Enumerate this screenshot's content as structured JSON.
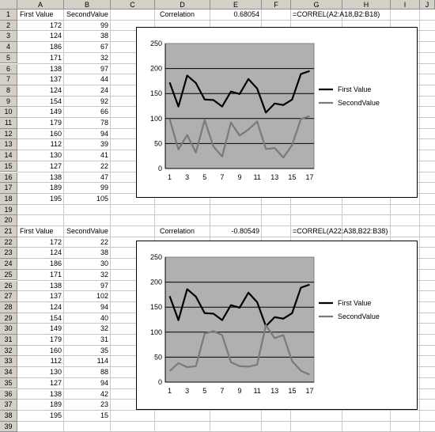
{
  "columns": [
    "A",
    "B",
    "C",
    "D",
    "E",
    "F",
    "G",
    "H",
    "I",
    "J"
  ],
  "rows": [
    "1",
    "2",
    "3",
    "4",
    "5",
    "6",
    "7",
    "8",
    "9",
    "10",
    "11",
    "12",
    "13",
    "14",
    "15",
    "16",
    "17",
    "18",
    "19",
    "20",
    "21",
    "22",
    "23",
    "24",
    "25",
    "26",
    "27",
    "28",
    "29",
    "30",
    "31",
    "32",
    "33",
    "34",
    "35",
    "36",
    "37",
    "38",
    "39"
  ],
  "block1": {
    "header_a": "First Value",
    "header_b": "SecondValue",
    "label": "Correlation",
    "value": "0.68054",
    "formula": "=CORREL(A2:A18,B2:B18)",
    "col_a": [
      "172",
      "124",
      "186",
      "171",
      "138",
      "137",
      "124",
      "154",
      "149",
      "179",
      "160",
      "112",
      "130",
      "127",
      "138",
      "189",
      "195"
    ],
    "col_b": [
      "99",
      "38",
      "67",
      "32",
      "97",
      "44",
      "24",
      "92",
      "66",
      "78",
      "94",
      "39",
      "41",
      "22",
      "47",
      "99",
      "105"
    ]
  },
  "block2": {
    "header_a": "First Value",
    "header_b": "SecondValue",
    "label": "Correlation",
    "value": "-0.80549",
    "formula": "=CORREL(A22:A38,B22:B38)",
    "col_a": [
      "172",
      "124",
      "186",
      "171",
      "138",
      "137",
      "124",
      "154",
      "149",
      "179",
      "160",
      "112",
      "130",
      "127",
      "138",
      "189",
      "195"
    ],
    "col_b": [
      "22",
      "38",
      "30",
      "32",
      "97",
      "102",
      "94",
      "40",
      "32",
      "31",
      "35",
      "114",
      "88",
      "94",
      "42",
      "23",
      "15"
    ]
  },
  "chart_data": [
    {
      "type": "line",
      "x": [
        1,
        2,
        3,
        4,
        5,
        6,
        7,
        8,
        9,
        10,
        11,
        12,
        13,
        14,
        15,
        16,
        17
      ],
      "x_tick_labels": [
        "1",
        "3",
        "5",
        "7",
        "9",
        "11",
        "13",
        "15",
        "17"
      ],
      "y_tick_labels": [
        "0",
        "50",
        "100",
        "150",
        "200",
        "250"
      ],
      "ylim": [
        0,
        250
      ],
      "grid": true,
      "legend_position": "right",
      "series": [
        {
          "name": "First Value",
          "color": "#000000",
          "values": [
            172,
            124,
            186,
            171,
            138,
            137,
            124,
            154,
            149,
            179,
            160,
            112,
            130,
            127,
            138,
            189,
            195
          ]
        },
        {
          "name": "SecondValue",
          "color": "#7a7a7a",
          "values": [
            99,
            38,
            67,
            32,
            97,
            44,
            24,
            92,
            66,
            78,
            94,
            39,
            41,
            22,
            47,
            99,
            105
          ]
        }
      ]
    },
    {
      "type": "line",
      "x": [
        1,
        2,
        3,
        4,
        5,
        6,
        7,
        8,
        9,
        10,
        11,
        12,
        13,
        14,
        15,
        16,
        17
      ],
      "x_tick_labels": [
        "1",
        "3",
        "5",
        "7",
        "9",
        "11",
        "13",
        "15",
        "17"
      ],
      "y_tick_labels": [
        "0",
        "50",
        "100",
        "150",
        "200",
        "250"
      ],
      "ylim": [
        0,
        250
      ],
      "grid": true,
      "legend_position": "right",
      "series": [
        {
          "name": "First Value",
          "color": "#000000",
          "values": [
            172,
            124,
            186,
            171,
            138,
            137,
            124,
            154,
            149,
            179,
            160,
            112,
            130,
            127,
            138,
            189,
            195
          ]
        },
        {
          "name": "SecondValue",
          "color": "#7a7a7a",
          "values": [
            22,
            38,
            30,
            32,
            97,
            102,
            94,
            40,
            32,
            31,
            35,
            114,
            88,
            94,
            42,
            23,
            15
          ]
        }
      ]
    }
  ],
  "colors": {
    "plot_area": "#b0b0b0",
    "header_bg": "#d4d0c8",
    "gridline": "#c8c8c8"
  }
}
